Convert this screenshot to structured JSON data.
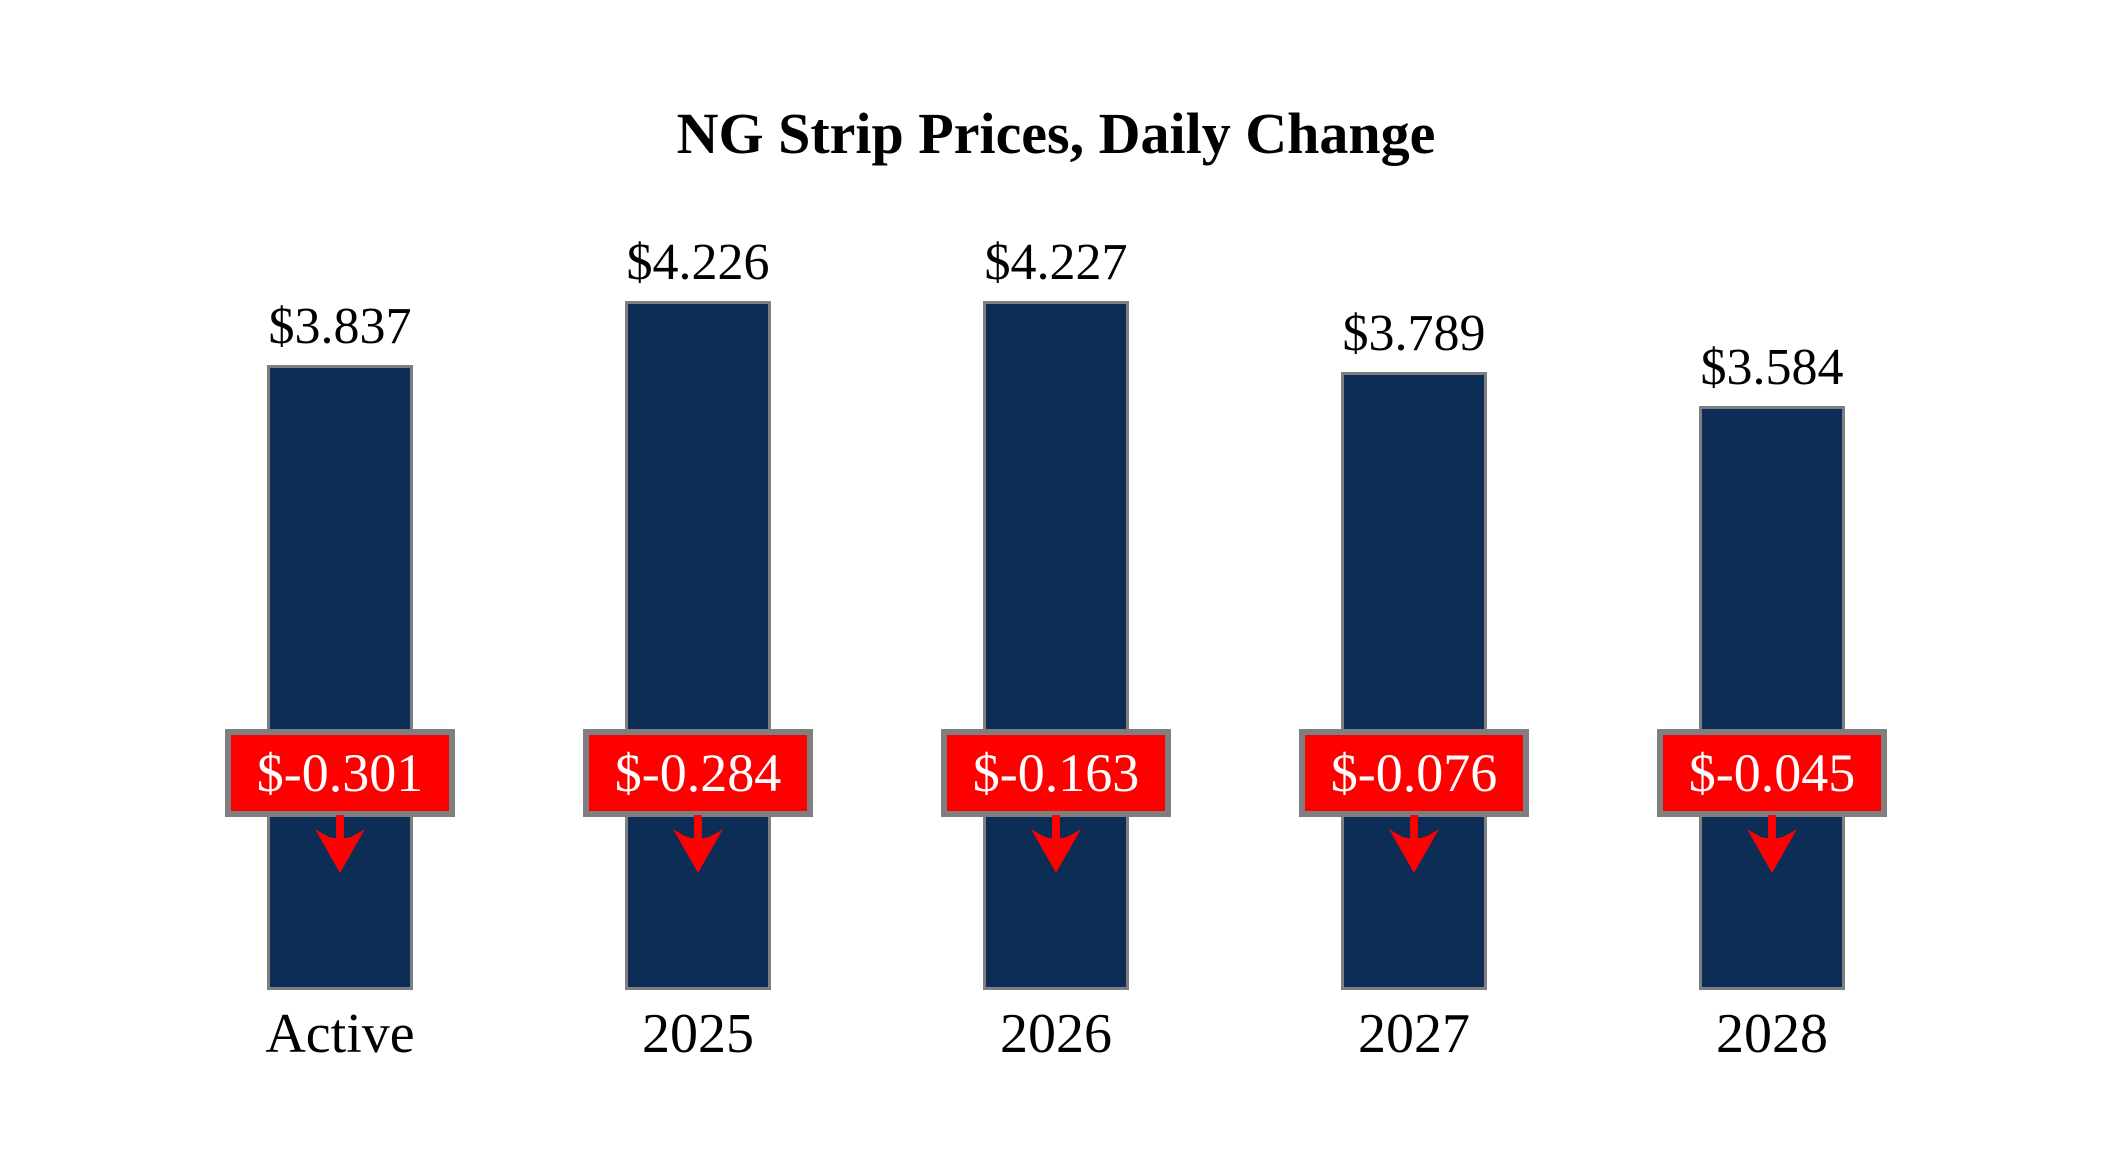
{
  "title": "NG Strip Prices, Daily Change",
  "colors": {
    "background": "#ffffff",
    "bar_fill": "#0c2d56",
    "bar_border": "#7f7f7f",
    "change_box_fill": "#fe0000",
    "change_box_border": "#7f7f7f",
    "change_text": "#ffffff",
    "arrow": "#fe0000",
    "text": "#000000"
  },
  "chart_data": {
    "type": "bar",
    "title": "NG Strip Prices, Daily Change",
    "categories": [
      "Active",
      "2025",
      "2026",
      "2027",
      "2028"
    ],
    "values": [
      3.837,
      4.226,
      4.227,
      3.789,
      3.584
    ],
    "value_labels": [
      "$3.837",
      "$4.226",
      "$4.227",
      "$3.789",
      "$3.584"
    ],
    "changes": [
      -0.301,
      -0.284,
      -0.163,
      -0.076,
      -0.045
    ],
    "change_labels": [
      "$-0.301",
      "$-0.284",
      "$-0.163",
      "$-0.076",
      "$-0.045"
    ],
    "change_direction": "down",
    "xlabel": "",
    "ylabel": "",
    "ylim": [
      0,
      4.227
    ],
    "grid": false,
    "legend": null,
    "axis_lines": false
  }
}
